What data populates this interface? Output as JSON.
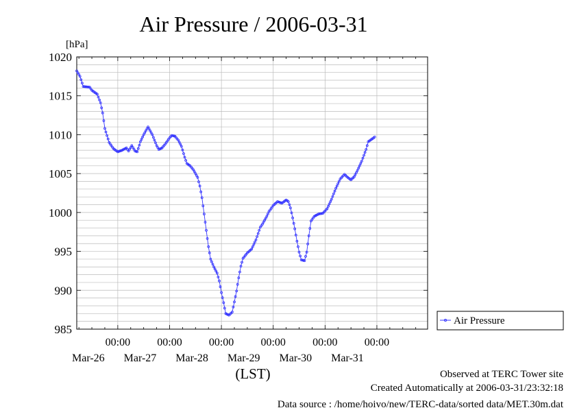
{
  "chart_data": {
    "type": "line",
    "title": "Air Pressure / 2006-03-31",
    "ylabel": "[hPa]",
    "xlabel": "(LST)",
    "ylim": [
      985,
      1020
    ],
    "xlim": [
      "2006-03-25 05:00",
      "2006-03-31 23:30"
    ],
    "yticks": [
      985,
      990,
      995,
      1000,
      1005,
      1010,
      1015,
      1020
    ],
    "xtick_labels": [
      {
        "x": "2006-03-26 00:00",
        "time": "00:00",
        "date": "Mar-26"
      },
      {
        "x": "2006-03-27 00:00",
        "time": "00:00",
        "date": "Mar-27"
      },
      {
        "x": "2006-03-28 00:00",
        "time": "00:00",
        "date": "Mar-28"
      },
      {
        "x": "2006-03-29 00:00",
        "time": "00:00",
        "date": "Mar-29"
      },
      {
        "x": "2006-03-30 00:00",
        "time": "00:00",
        "date": "Mar-30"
      },
      {
        "x": "2006-03-31 00:00",
        "time": "00:00",
        "date": "Mar-31"
      }
    ],
    "grid": true,
    "legend_position": "right",
    "series": [
      {
        "name": "Air Pressure",
        "color": "#3333ff",
        "marker": "circle",
        "points": [
          [
            "2006-03-25 05:00",
            1018.2
          ],
          [
            "2006-03-25 06:30",
            1017.5
          ],
          [
            "2006-03-25 08:00",
            1016.2
          ],
          [
            "2006-03-25 11:00",
            1016.1
          ],
          [
            "2006-03-25 12:00",
            1015.7
          ],
          [
            "2006-03-25 14:30",
            1015.2
          ],
          [
            "2006-03-25 16:00",
            1014.1
          ],
          [
            "2006-03-25 17:00",
            1012.8
          ],
          [
            "2006-03-25 18:00",
            1010.8
          ],
          [
            "2006-03-25 20:00",
            1009.0
          ],
          [
            "2006-03-25 22:00",
            1008.2
          ],
          [
            "2006-03-26 00:00",
            1007.8
          ],
          [
            "2006-03-26 02:00",
            1008.0
          ],
          [
            "2006-03-26 04:00",
            1008.3
          ],
          [
            "2006-03-26 05:00",
            1007.9
          ],
          [
            "2006-03-26 06:30",
            1008.6
          ],
          [
            "2006-03-26 08:00",
            1007.9
          ],
          [
            "2006-03-26 09:00",
            1007.8
          ],
          [
            "2006-03-26 10:30",
            1009.1
          ],
          [
            "2006-03-26 12:00",
            1010.0
          ],
          [
            "2006-03-26 14:00",
            1011.0
          ],
          [
            "2006-03-26 16:00",
            1010.0
          ],
          [
            "2006-03-26 18:00",
            1008.6
          ],
          [
            "2006-03-26 19:00",
            1008.1
          ],
          [
            "2006-03-26 20:30",
            1008.3
          ],
          [
            "2006-03-26 22:00",
            1008.8
          ],
          [
            "2006-03-27 00:00",
            1009.6
          ],
          [
            "2006-03-27 01:00",
            1009.9
          ],
          [
            "2006-03-27 02:30",
            1009.8
          ],
          [
            "2006-03-27 04:00",
            1009.3
          ],
          [
            "2006-03-27 05:30",
            1008.5
          ],
          [
            "2006-03-27 07:00",
            1007.1
          ],
          [
            "2006-03-27 08:00",
            1006.3
          ],
          [
            "2006-03-27 09:30",
            1006.0
          ],
          [
            "2006-03-27 11:00",
            1005.5
          ],
          [
            "2006-03-27 13:00",
            1004.5
          ],
          [
            "2006-03-27 14:00",
            1003.4
          ],
          [
            "2006-03-27 15:00",
            1001.9
          ],
          [
            "2006-03-27 16:00",
            999.8
          ],
          [
            "2006-03-27 17:00",
            997.7
          ],
          [
            "2006-03-27 18:00",
            995.6
          ],
          [
            "2006-03-27 19:00",
            994.0
          ],
          [
            "2006-03-27 20:30",
            993.0
          ],
          [
            "2006-03-27 22:00",
            992.2
          ],
          [
            "2006-03-27 23:00",
            991.2
          ],
          [
            "2006-03-28 00:00",
            989.7
          ],
          [
            "2006-03-28 01:00",
            988.4
          ],
          [
            "2006-03-28 02:00",
            987.0
          ],
          [
            "2006-03-28 03:30",
            986.8
          ],
          [
            "2006-03-28 05:00",
            987.2
          ],
          [
            "2006-03-28 06:00",
            988.5
          ],
          [
            "2006-03-28 07:00",
            989.9
          ],
          [
            "2006-03-28 08:00",
            991.6
          ],
          [
            "2006-03-28 09:00",
            993.1
          ],
          [
            "2006-03-28 10:00",
            994.1
          ],
          [
            "2006-03-28 12:00",
            994.8
          ],
          [
            "2006-03-28 14:00",
            995.3
          ],
          [
            "2006-03-28 16:00",
            996.5
          ],
          [
            "2006-03-28 18:00",
            998.1
          ],
          [
            "2006-03-28 19:00",
            998.5
          ],
          [
            "2006-03-28 21:00",
            999.5
          ],
          [
            "2006-03-28 22:00",
            1000.1
          ],
          [
            "2006-03-29 00:00",
            1000.9
          ],
          [
            "2006-03-29 02:00",
            1001.4
          ],
          [
            "2006-03-29 04:00",
            1001.2
          ],
          [
            "2006-03-29 06:00",
            1001.6
          ],
          [
            "2006-03-29 07:00",
            1001.4
          ],
          [
            "2006-03-29 08:00",
            1000.6
          ],
          [
            "2006-03-29 09:00",
            999.3
          ],
          [
            "2006-03-29 10:00",
            997.9
          ],
          [
            "2006-03-29 11:00",
            996.3
          ],
          [
            "2006-03-29 12:00",
            994.9
          ],
          [
            "2006-03-29 13:00",
            993.9
          ],
          [
            "2006-03-29 14:30",
            993.8
          ],
          [
            "2006-03-29 15:30",
            994.9
          ],
          [
            "2006-03-29 16:30",
            997.0
          ],
          [
            "2006-03-29 17:30",
            998.9
          ],
          [
            "2006-03-29 19:00",
            999.5
          ],
          [
            "2006-03-29 21:00",
            999.8
          ],
          [
            "2006-03-29 23:00",
            999.9
          ],
          [
            "2006-03-30 01:00",
            1000.5
          ],
          [
            "2006-03-30 03:00",
            1001.7
          ],
          [
            "2006-03-30 05:00",
            1003.1
          ],
          [
            "2006-03-30 07:00",
            1004.3
          ],
          [
            "2006-03-30 09:00",
            1004.9
          ],
          [
            "2006-03-30 10:30",
            1004.5
          ],
          [
            "2006-03-30 12:00",
            1004.2
          ],
          [
            "2006-03-30 13:30",
            1004.6
          ],
          [
            "2006-03-30 15:00",
            1005.4
          ],
          [
            "2006-03-30 17:00",
            1006.6
          ],
          [
            "2006-03-30 19:00",
            1008.1
          ],
          [
            "2006-03-30 20:00",
            1009.1
          ],
          [
            "2006-03-30 21:30",
            1009.4
          ],
          [
            "2006-03-30 23:00",
            1009.7
          ]
        ]
      }
    ]
  },
  "footer": {
    "line1": "Observed at TERC Tower site",
    "line2": "Created Automatically at 2006-03-31/23:32:18",
    "line3": "Data source : /home/hoivo/new/TERC-data/sorted  data/MET.30m.dat"
  }
}
